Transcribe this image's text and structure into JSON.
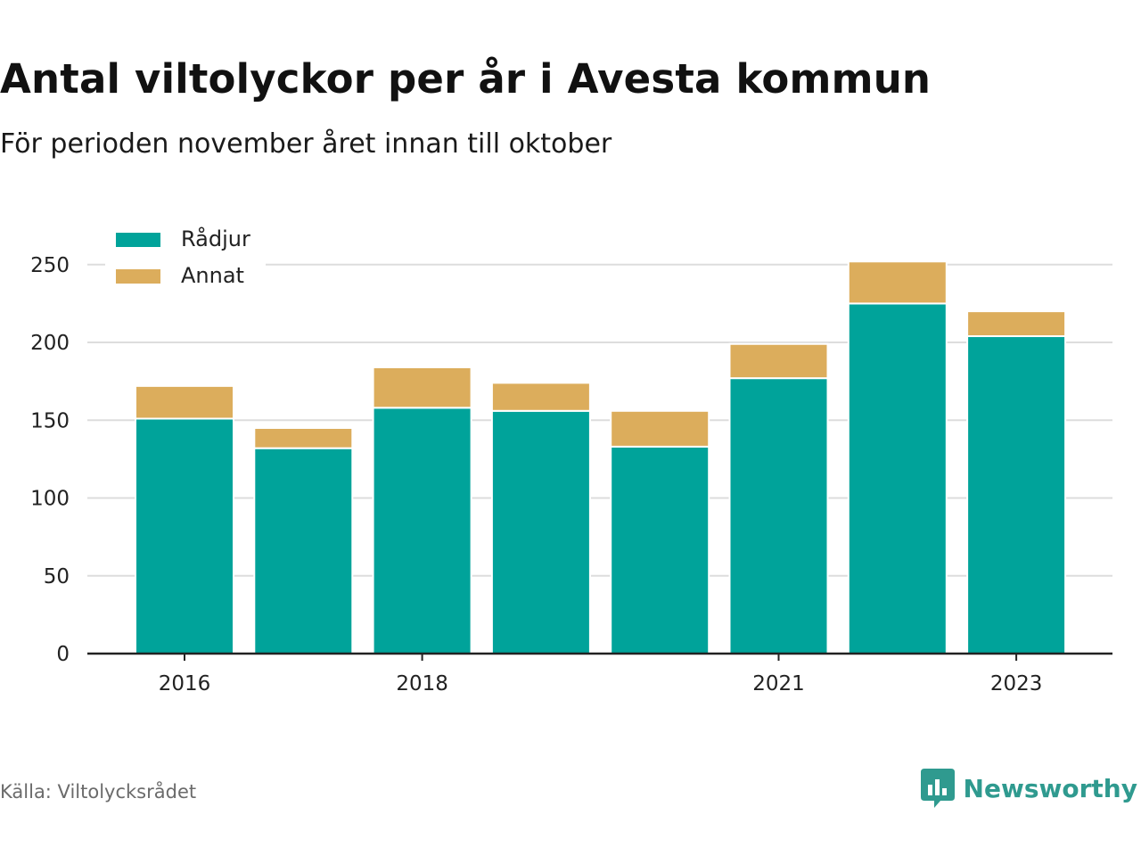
{
  "title": "Antal viltolyckor per år i Avesta kommun",
  "subtitle": "För perioden november året innan till oktober",
  "source": "Källa: Viltolycksrådet",
  "brand": {
    "name": "Newsworthy",
    "icon": "bar-chart-speech-bubble-icon",
    "color": "#2f9a8f"
  },
  "colors": {
    "Rådjur": "#00a39a",
    "Annat": "#dcad5c",
    "grid": "#dddddd",
    "axis": "#222222"
  },
  "chart_data": {
    "type": "bar",
    "stacked": true,
    "title": "Antal viltolyckor per år i Avesta kommun",
    "subtitle": "För perioden november året innan till oktober",
    "x": [
      2016,
      2017,
      2018,
      2019,
      2020,
      2021,
      2022,
      2023
    ],
    "x_tick_labels": [
      "2016",
      "2018",
      "2021",
      "2023"
    ],
    "series": [
      {
        "name": "Rådjur",
        "values": [
          151,
          132,
          158,
          156,
          133,
          177,
          225,
          204
        ]
      },
      {
        "name": "Annat",
        "values": [
          21,
          13,
          26,
          18,
          23,
          22,
          27,
          16
        ]
      }
    ],
    "ylim": [
      0,
      260
    ],
    "y_ticks": [
      0,
      50,
      100,
      150,
      200,
      250
    ],
    "grid": true,
    "legend_position": "top-left"
  }
}
